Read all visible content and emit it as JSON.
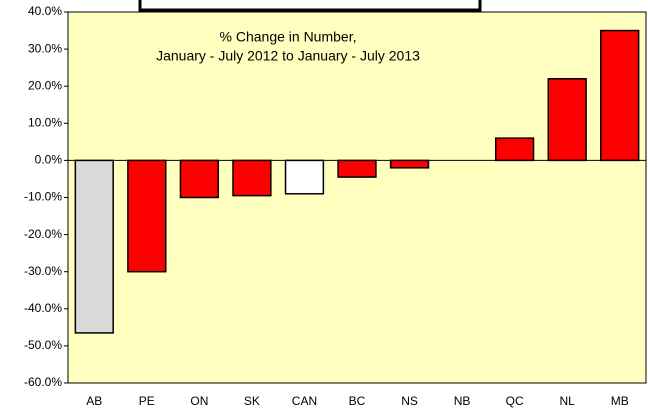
{
  "chart_data": {
    "type": "bar",
    "title": "% Change in Number,",
    "subtitle": "January - July 2012 to January - July 2013",
    "categories": [
      "AB",
      "PE",
      "ON",
      "SK",
      "CAN",
      "BC",
      "NS",
      "NB",
      "QC",
      "NL",
      "MB"
    ],
    "values": [
      -46.5,
      -30,
      -10,
      -9.5,
      -9,
      -4.5,
      -2,
      0,
      6,
      22,
      35
    ],
    "colors": [
      "#d9d9d9",
      "#ff0000",
      "#ff0000",
      "#ff0000",
      "#ffffff",
      "#ff0000",
      "#ff0000",
      "#ff0000",
      "#ff0000",
      "#ff0000",
      "#ff0000"
    ],
    "ylim": [
      -60,
      40
    ],
    "yticks": [
      {
        "value": -60,
        "label": "-60.0%"
      },
      {
        "value": -50,
        "label": "-50.0%"
      },
      {
        "value": -40,
        "label": "-40.0%"
      },
      {
        "value": -30,
        "label": "-30.0%"
      },
      {
        "value": -20,
        "label": "-20.0%"
      },
      {
        "value": -10,
        "label": "-10.0%"
      },
      {
        "value": 0,
        "label": "0.0%"
      },
      {
        "value": 10,
        "label": "10.0%"
      },
      {
        "value": 20,
        "label": "20.0%"
      },
      {
        "value": 30,
        "label": "30.0%"
      },
      {
        "value": 40,
        "label": "40.0%"
      }
    ],
    "background": "#ffffc0"
  }
}
